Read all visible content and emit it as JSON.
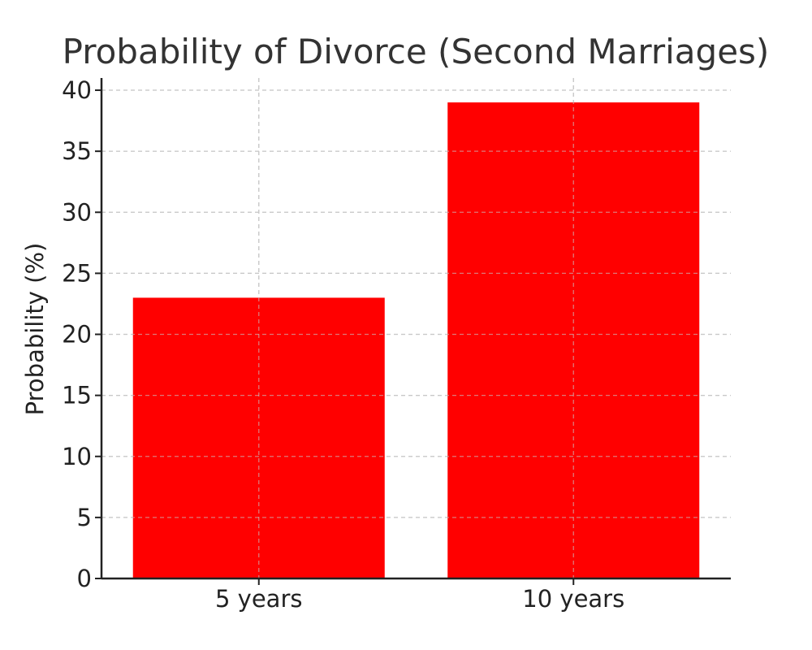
{
  "chart_data": {
    "type": "bar",
    "title": "Probability of Divorce (Second Marriages)",
    "xlabel": "",
    "ylabel": "Probability (%)",
    "categories": [
      "5 years",
      "10 years"
    ],
    "values": [
      23,
      39
    ],
    "ylim": [
      0,
      41
    ],
    "yticks": [
      0,
      5,
      10,
      15,
      20,
      25,
      30,
      35,
      40
    ],
    "grid": true,
    "legend": "none",
    "colors": {
      "bar": "#ff0000",
      "grid": "#c8c8c8",
      "axis": "#222222",
      "title": "#333333"
    }
  }
}
